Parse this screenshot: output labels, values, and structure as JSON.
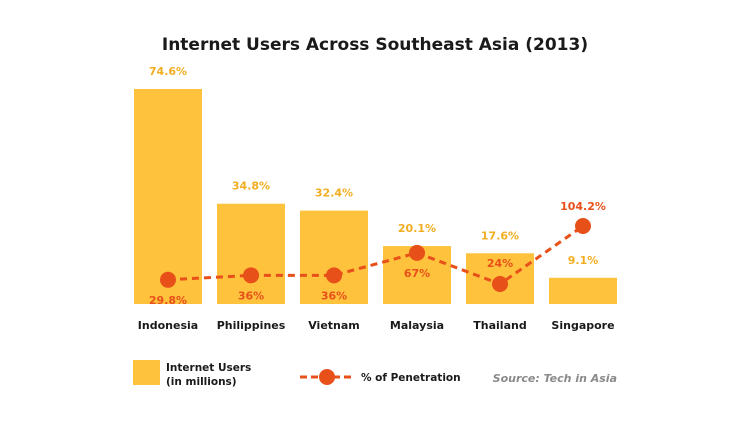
{
  "chart_data": {
    "type": "bar",
    "title": "Internet Users Across Southeast Asia (2013)",
    "categories": [
      "Indonesia",
      "Philippines",
      "Vietnam",
      "Malaysia",
      "Thailand",
      "Singapore"
    ],
    "series": [
      {
        "name": "Internet Users (in millions)",
        "type": "bar",
        "values": [
          74.6,
          34.8,
          32.4,
          20.1,
          17.6,
          9.1
        ],
        "labels": [
          "74.6%",
          "34.8%",
          "32.4%",
          "20.1%",
          "17.6%",
          "9.1%"
        ]
      },
      {
        "name": "% of Penetration",
        "type": "line",
        "values": [
          29.8,
          36,
          36,
          67,
          24,
          104.2
        ],
        "labels": [
          "29.8%",
          "36%",
          "36%",
          "67%",
          "24%",
          "104.2%"
        ]
      }
    ],
    "legend": {
      "bar_label_line1": "Internet Users",
      "bar_label_line2": "(in millions)",
      "line_label": "% of Penetration",
      "placement": "bottom"
    },
    "source": "Source: Tech in Asia",
    "grid": false,
    "colors": {
      "bar": "#FFC23D",
      "bar_label": "#F2AE22",
      "line": "#E8501A",
      "text": "#1a1a1a",
      "source": "#8a8a8a"
    }
  }
}
